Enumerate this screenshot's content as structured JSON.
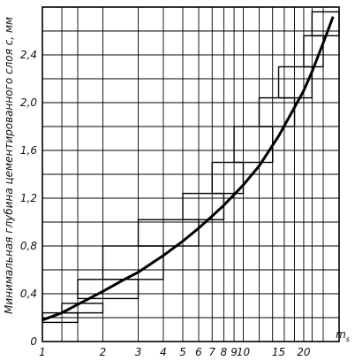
{
  "chart_data": {
    "type": "line",
    "ylabel": "Минимальная глубина цементированного слоя c, мм",
    "xlabel": "m",
    "xlabel_subscript": "s",
    "x_scale": "log",
    "xlim": [
      1,
      30
    ],
    "ylim": [
      0,
      2.8
    ],
    "grid": true,
    "x_tick_labels": [
      {
        "value": 1,
        "label": "1"
      },
      {
        "value": 2,
        "label": "2"
      },
      {
        "value": 3,
        "label": "3"
      },
      {
        "value": 4,
        "label": "4"
      },
      {
        "value": 5,
        "label": "5"
      },
      {
        "value": 6,
        "label": "6"
      },
      {
        "value": 7,
        "label": "7"
      },
      {
        "value": 8,
        "label": "8"
      },
      {
        "value": 9,
        "label": "9"
      },
      {
        "value": 10,
        "label": "10"
      },
      {
        "value": 15,
        "label": "15"
      },
      {
        "value": 20,
        "label": "20"
      }
    ],
    "x_gridlines": [
      1.25,
      1.5,
      2,
      3,
      4,
      5,
      6,
      7,
      8,
      9,
      10,
      12,
      14,
      16,
      18,
      20,
      22,
      25
    ],
    "y_ticks": [
      0,
      0.4,
      0.8,
      1.2,
      1.6,
      2.0,
      2.4
    ],
    "y_tick_labels": [
      "0",
      "0,4",
      "0,8",
      "1,2",
      "1,6",
      "2,0",
      "2,4"
    ],
    "y_gridlines": [
      0.2,
      0.4,
      0.6,
      0.8,
      1.0,
      1.2,
      1.4,
      1.6,
      1.8,
      2.0,
      2.2,
      2.4,
      2.6
    ],
    "series": [
      {
        "kind": "curve",
        "points": [
          [
            1,
            0.18
          ],
          [
            1.25,
            0.24
          ],
          [
            1.5,
            0.31
          ],
          [
            2,
            0.42
          ],
          [
            2.5,
            0.51
          ],
          [
            3,
            0.58
          ],
          [
            4,
            0.72
          ],
          [
            5,
            0.84
          ],
          [
            6,
            0.95
          ],
          [
            7,
            1.05
          ],
          [
            8,
            1.14
          ],
          [
            9,
            1.23
          ],
          [
            10,
            1.31
          ],
          [
            12,
            1.47
          ],
          [
            15,
            1.72
          ],
          [
            18,
            1.96
          ],
          [
            20,
            2.1
          ],
          [
            22,
            2.26
          ],
          [
            25,
            2.5
          ],
          [
            28,
            2.72
          ]
        ]
      },
      {
        "kind": "step_bands",
        "bands": [
          {
            "x0": 1,
            "x1": 1.5,
            "y0": 0.16,
            "y1": 0.24
          },
          {
            "x0": 1.25,
            "x1": 2,
            "y0": 0.24,
            "y1": 0.32
          },
          {
            "x0": 1.5,
            "x1": 3,
            "y0": 0.36,
            "y1": 0.52
          },
          {
            "x0": 2,
            "x1": 4,
            "y0": 0.52,
            "y1": 0.8
          },
          {
            "x0": 3,
            "x1": 6,
            "y0": 0.8,
            "y1": 1.02
          },
          {
            "x0": 5,
            "x1": 8,
            "y0": 1.02,
            "y1": 1.24
          },
          {
            "x0": 7,
            "x1": 10,
            "y0": 1.24,
            "y1": 1.5
          },
          {
            "x0": 9,
            "x1": 14,
            "y0": 1.5,
            "y1": 1.8
          },
          {
            "x0": 12,
            "x1": 18,
            "y0": 1.8,
            "y1": 2.04
          },
          {
            "x0": 15,
            "x1": 22,
            "y0": 2.04,
            "y1": 2.3
          },
          {
            "x0": 20,
            "x1": 25,
            "y0": 2.3,
            "y1": 2.56
          },
          {
            "x0": 22,
            "x1": 30,
            "y0": 2.56,
            "y1": 2.76
          }
        ]
      }
    ]
  }
}
